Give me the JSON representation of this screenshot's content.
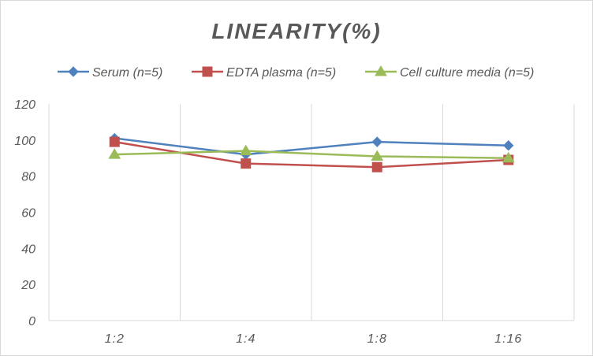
{
  "chart_data": {
    "type": "line",
    "title": "LINEARITY(%)",
    "xlabel": "",
    "ylabel": "",
    "categories": [
      "1:2",
      "1:4",
      "1:8",
      "1:16"
    ],
    "ylim": [
      0,
      120
    ],
    "yticks": [
      0,
      20,
      40,
      60,
      80,
      100,
      120
    ],
    "grid": "vertical",
    "legend_position": "top",
    "series": [
      {
        "name": "Serum (n=5)",
        "values": [
          101,
          92,
          99,
          97
        ],
        "color": "#4f81bd",
        "marker": "diamond"
      },
      {
        "name": "EDTA plasma (n=5)",
        "values": [
          99,
          87,
          85,
          89
        ],
        "color": "#c0504d",
        "marker": "square"
      },
      {
        "name": "Cell culture media (n=5)",
        "values": [
          92,
          94,
          91,
          90
        ],
        "color": "#9bbb59",
        "marker": "triangle"
      }
    ]
  }
}
